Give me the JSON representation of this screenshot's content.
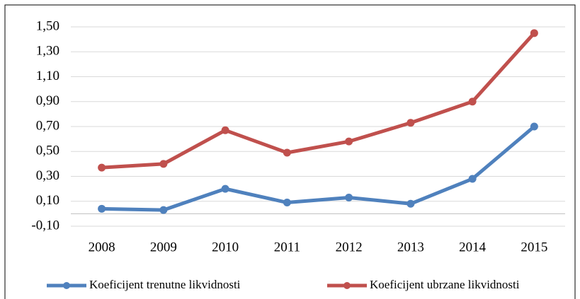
{
  "chart_data": {
    "type": "line",
    "categories": [
      "2008",
      "2009",
      "2010",
      "2011",
      "2012",
      "2013",
      "2014",
      "2015"
    ],
    "series": [
      {
        "name": "Koeficijent trenutne likvidnosti",
        "color": "#4f81bd",
        "values": [
          0.04,
          0.03,
          0.2,
          0.09,
          0.13,
          0.08,
          0.28,
          0.7
        ]
      },
      {
        "name": "Koeficijent ubrzane likvidnosti",
        "color": "#c0504d",
        "values": [
          0.37,
          0.4,
          0.67,
          0.49,
          0.58,
          0.73,
          0.9,
          1.45
        ]
      }
    ],
    "ylim": [
      -0.1,
      1.5
    ],
    "yticks": [
      {
        "value": -0.1,
        "label": "-0,10"
      },
      {
        "value": 0.1,
        "label": "0,10"
      },
      {
        "value": 0.3,
        "label": "0,30"
      },
      {
        "value": 0.5,
        "label": "0,50"
      },
      {
        "value": 0.7,
        "label": "0,70"
      },
      {
        "value": 0.9,
        "label": "0,90"
      },
      {
        "value": 1.1,
        "label": "1,10"
      },
      {
        "value": 1.3,
        "label": "1,30"
      },
      {
        "value": 1.5,
        "label": "1,50"
      }
    ],
    "grid": true,
    "legend": "bottom"
  }
}
